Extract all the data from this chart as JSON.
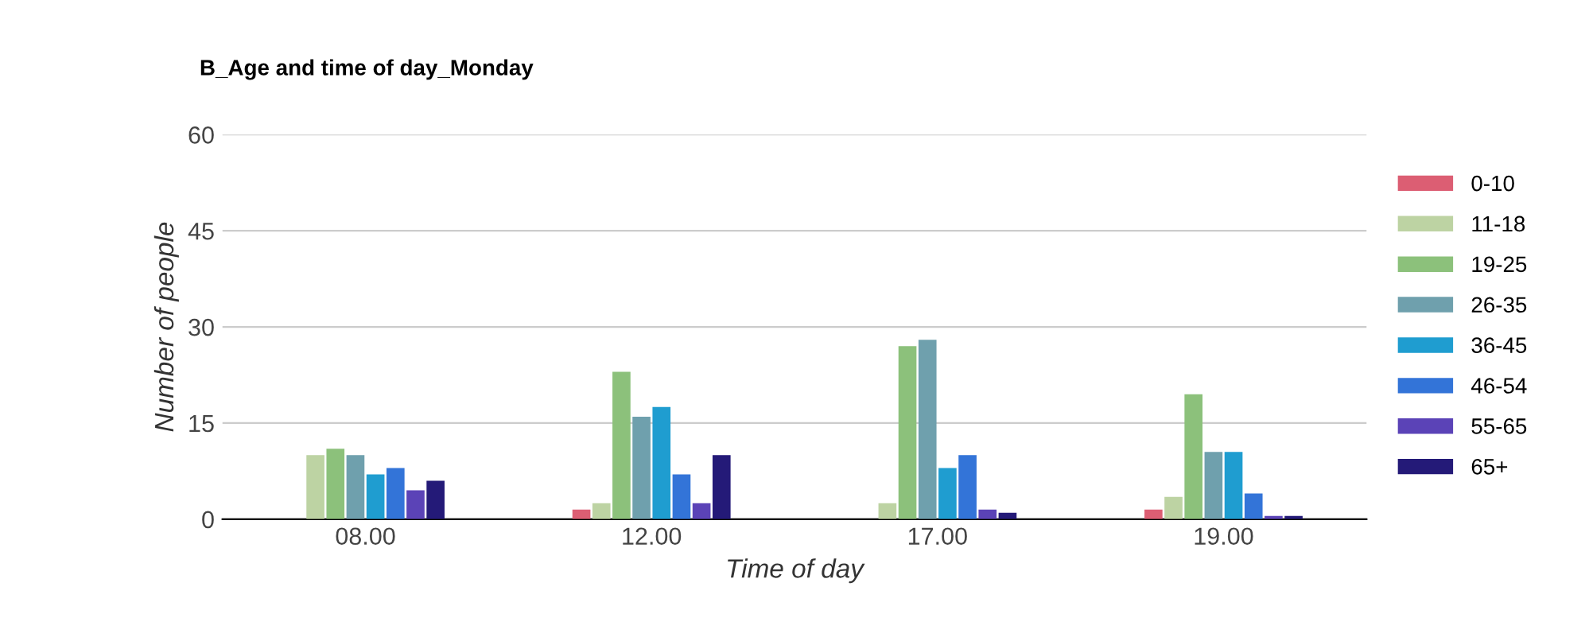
{
  "chart_data": {
    "type": "bar",
    "title": "B_Age and time of day_Monday",
    "xlabel": "Time of day",
    "ylabel": "Number of people",
    "categories": [
      "08.00",
      "12.00",
      "17.00",
      "19.00"
    ],
    "series": [
      {
        "name": "0-10",
        "color": "#dc5e73",
        "values": [
          0,
          1.5,
          0,
          1.5
        ]
      },
      {
        "name": "11-18",
        "color": "#bdd3a3",
        "values": [
          10,
          2.5,
          2.5,
          3.5
        ]
      },
      {
        "name": "19-25",
        "color": "#8cc17b",
        "values": [
          11,
          23,
          27,
          19.5
        ]
      },
      {
        "name": "26-35",
        "color": "#6fa0ad",
        "values": [
          10,
          16,
          28,
          10.5
        ]
      },
      {
        "name": "36-45",
        "color": "#1f9dd0",
        "values": [
          7,
          17.5,
          8,
          10.5
        ]
      },
      {
        "name": "46-54",
        "color": "#3374d8",
        "values": [
          8,
          7,
          10,
          4
        ]
      },
      {
        "name": "55-65",
        "color": "#5b43b7",
        "values": [
          4.5,
          2.5,
          1.5,
          0.5
        ]
      },
      {
        "name": "65+",
        "color": "#241a78",
        "values": [
          6,
          10,
          1,
          0.5
        ]
      }
    ],
    "ylim": [
      0,
      60
    ],
    "yticks": [
      0,
      15,
      30,
      45,
      60
    ],
    "grid": "y",
    "legend": "right"
  }
}
